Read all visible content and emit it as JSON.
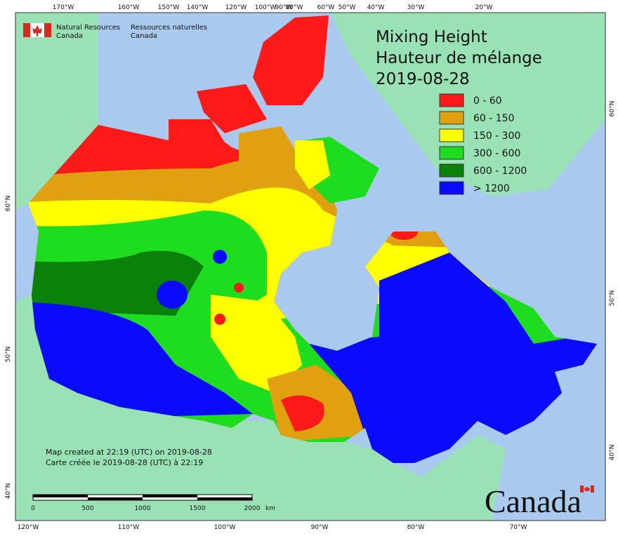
{
  "header": {
    "agency_en": "Natural Resources",
    "country_en": "Canada",
    "agency_fr": "Ressources naturelles",
    "country_fr": "Canada"
  },
  "title": {
    "line1": "Mixing Height",
    "line2": "Hauteur de mélange",
    "date": "2019-08-28"
  },
  "legend": [
    {
      "label": "0 - 60",
      "color": "#ff1a1a"
    },
    {
      "label": "60 - 150",
      "color": "#e0a010"
    },
    {
      "label": "150 - 300",
      "color": "#ffff00"
    },
    {
      "label": "300 - 600",
      "color": "#1edc1e"
    },
    {
      "label": "600 - 1200",
      "color": "#0a820a"
    },
    {
      "label": "> 1200",
      "color": "#0a0aff"
    }
  ],
  "top_labels": [
    "170°W",
    "160°W",
    "150°W",
    "140°W",
    "120°W",
    "100°W",
    "90°W",
    "80°W",
    "60°W",
    "50°W",
    "40°W",
    "30°W",
    "20°W"
  ],
  "bottom_labels": [
    "120°W",
    "110°W",
    "100°W",
    "90°W",
    "80°W",
    "70°W"
  ],
  "left_labels": [
    "60°N",
    "50°N",
    "40°N"
  ],
  "right_labels": [
    "60°N",
    "50°N",
    "40°N"
  ],
  "notes": [
    "Map created at 22:19 (UTC) on 2019-08-28",
    "Carte créée le 2019-08-28 (UTC) à 22:19"
  ],
  "scale_bar": {
    "labels": [
      "0",
      "500",
      "1000",
      "1500",
      "2000"
    ],
    "unit": "km"
  },
  "wordmark": "Canada"
}
